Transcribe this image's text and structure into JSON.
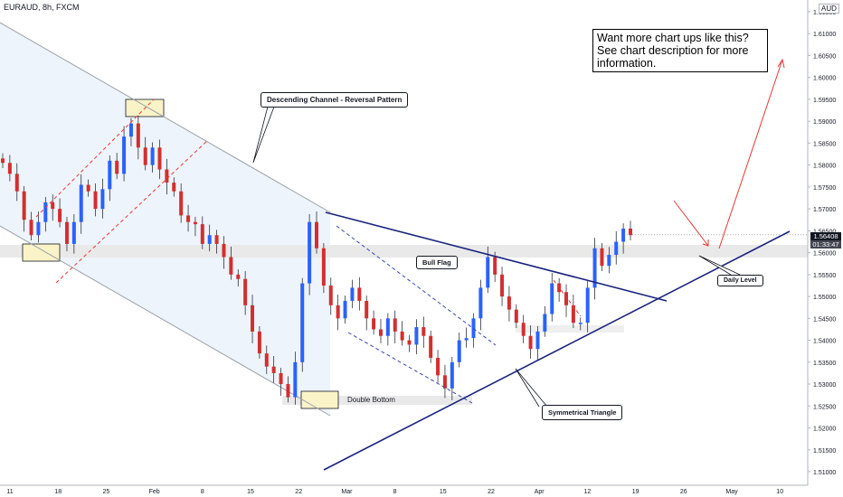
{
  "header": {
    "symbol": "EURAUD, 8h, FXCM",
    "currency": "AUD"
  },
  "promo": {
    "line1": "Want more chart ups like this?",
    "line2": "See chart description for more",
    "line3": "information."
  },
  "labels": {
    "descending_channel": "Descending Channel - Reversal Pattern",
    "bull_flag": "Bull Flag",
    "double_bottom": "Double Bottom",
    "symmetrical_triangle": "Symmetrical Triangle",
    "daily_level": "Daily Level"
  },
  "last_price": {
    "price": "1.56408",
    "timer": "01:33:47"
  },
  "colors": {
    "bull": "#2962ff",
    "bear": "#d32f2f",
    "triangle": "#1a237e",
    "channel": "#9aa0a6",
    "red_dashed": "#e53935",
    "channel_fill": "#eef4fb",
    "zone": "#e9e9e9",
    "highlight": "#fbf3c8"
  },
  "chart_data": {
    "type": "candlestick",
    "y_axis": {
      "min": 1.505,
      "max": 1.62,
      "position": "right",
      "ticks": [
        "1.61500",
        "1.61000",
        "1.60500",
        "1.60000",
        "1.59500",
        "1.59000",
        "1.58500",
        "1.58000",
        "1.57500",
        "1.57000",
        "1.56500",
        "1.56000",
        "1.55500",
        "1.55000",
        "1.54500",
        "1.54000",
        "1.53500",
        "1.53000",
        "1.52500",
        "1.52000",
        "1.51500",
        "1.51000"
      ]
    },
    "x_axis": {
      "ticks": [
        "11",
        "18",
        "25",
        "Feb",
        "8",
        "15",
        "22",
        "Mar",
        "8",
        "15",
        "22",
        "Apr",
        "12",
        "19",
        "26",
        "May",
        "10"
      ]
    },
    "last_price": 1.56408,
    "close_path": [
      [
        1.581,
        1.58
      ],
      [
        1.576,
        1.58
      ],
      [
        1.572,
        1.576
      ],
      [
        1.566,
        1.569
      ],
      [
        1.563,
        1.565
      ],
      [
        1.566,
        1.568
      ],
      [
        1.571,
        1.572
      ],
      [
        1.569,
        1.571
      ],
      [
        1.566,
        1.568
      ],
      [
        1.561,
        1.563
      ],
      [
        1.566,
        1.568
      ],
      [
        1.575,
        1.576
      ],
      [
        1.573,
        1.575
      ],
      [
        1.569,
        1.571
      ],
      [
        1.574,
        1.575
      ],
      [
        1.58,
        1.582
      ],
      [
        1.577,
        1.579
      ],
      [
        1.586,
        1.587
      ],
      [
        1.589,
        1.59
      ],
      [
        1.583,
        1.585
      ],
      [
        1.579,
        1.581
      ],
      [
        1.583,
        1.585
      ],
      [
        1.578,
        1.58
      ],
      [
        1.575,
        1.577
      ],
      [
        1.573,
        1.575
      ],
      [
        1.567,
        1.57
      ],
      [
        1.566,
        1.568
      ],
      [
        1.566,
        1.567
      ],
      [
        1.561,
        1.563
      ],
      [
        1.563,
        1.565
      ],
      [
        1.561,
        1.563
      ],
      [
        1.558,
        1.56
      ],
      [
        1.554,
        1.556
      ],
      [
        1.553,
        1.555
      ],
      [
        1.547,
        1.549
      ],
      [
        1.541,
        1.543
      ],
      [
        1.536,
        1.538
      ],
      [
        1.533,
        1.535
      ],
      [
        1.532,
        1.533
      ],
      [
        1.529,
        1.531
      ],
      [
        1.526,
        1.528
      ],
      [
        1.534,
        1.536
      ],
      [
        1.552,
        1.554
      ],
      [
        1.566,
        1.568
      ],
      [
        1.56,
        1.562
      ],
      [
        1.552,
        1.553
      ],
      [
        1.547,
        1.549
      ],
      [
        1.544,
        1.546
      ],
      [
        1.548,
        1.55
      ],
      [
        1.551,
        1.553
      ],
      [
        1.548,
        1.55
      ],
      [
        1.544,
        1.546
      ],
      [
        1.542,
        1.543
      ],
      [
        1.54,
        1.542
      ],
      [
        1.544,
        1.546
      ],
      [
        1.541,
        1.543
      ],
      [
        1.539,
        1.541
      ],
      [
        1.538,
        1.54
      ],
      [
        1.542,
        1.544
      ],
      [
        1.54,
        1.542
      ],
      [
        1.535,
        1.537
      ],
      [
        1.531,
        1.533
      ],
      [
        1.528,
        1.53
      ],
      [
        1.534,
        1.536
      ],
      [
        1.539,
        1.541
      ],
      [
        1.54,
        1.541
      ],
      [
        1.544,
        1.546
      ],
      [
        1.551,
        1.553
      ],
      [
        1.558,
        1.56
      ],
      [
        1.554,
        1.556
      ],
      [
        1.549,
        1.551
      ],
      [
        1.546,
        1.548
      ],
      [
        1.543,
        1.545
      ],
      [
        1.54,
        1.542
      ],
      [
        1.537,
        1.539
      ],
      [
        1.541,
        1.543
      ],
      [
        1.545,
        1.547
      ],
      [
        1.552,
        1.554
      ],
      [
        1.55,
        1.552
      ],
      [
        1.547,
        1.549
      ],
      [
        1.543,
        1.545
      ],
      [
        1.543,
        1.545
      ],
      [
        1.551,
        1.553
      ],
      [
        1.56,
        1.562
      ],
      [
        1.556,
        1.558
      ],
      [
        1.559,
        1.56
      ],
      [
        1.562,
        1.563
      ],
      [
        1.565,
        1.566
      ],
      [
        1.564,
        1.564
      ]
    ],
    "annotations": [
      "Descending Channel - Reversal Pattern",
      "Bull Flag",
      "Double Bottom",
      "Symmetrical Triangle",
      "Daily Level"
    ]
  }
}
